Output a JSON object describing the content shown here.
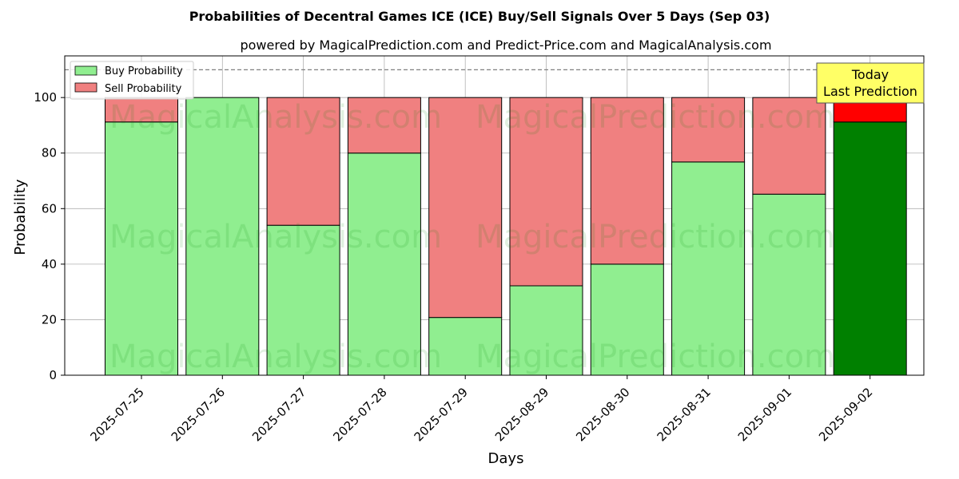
{
  "chart_data": {
    "type": "bar",
    "stacked": true,
    "title": "Probabilities of Decentral Games ICE (ICE) Buy/Sell Signals Over 5 Days (Sep 03)",
    "subtitle": "powered by MagicalPrediction.com and Predict-Price.com and MagicalAnalysis.com",
    "xlabel": "Days",
    "ylabel": "Probability",
    "ylim": [
      0,
      115
    ],
    "yticks": [
      0,
      20,
      40,
      60,
      80,
      100
    ],
    "grid": true,
    "legend_position": "top-left",
    "reference_line": 110,
    "categories": [
      "2025-07-25",
      "2025-07-26",
      "2025-07-27",
      "2025-07-28",
      "2025-07-29",
      "2025-08-29",
      "2025-08-30",
      "2025-08-31",
      "2025-09-01",
      "2025-09-02"
    ],
    "series": [
      {
        "name": "Buy Probability",
        "values": [
          91.2,
          100,
          54,
          80,
          20.8,
          32.2,
          40,
          76.8,
          65.2,
          91.2
        ]
      },
      {
        "name": "Sell Probability",
        "values": [
          8.8,
          0,
          46,
          20,
          79.2,
          67.8,
          60,
          23.2,
          34.8,
          8.8
        ]
      }
    ],
    "annotation": {
      "line1": "Today",
      "line2": "Last Prediction"
    },
    "watermarks": [
      "MagicalAnalysis.com",
      "MagicalPrediction.com",
      "MagicalAnalysis.com",
      "MagicalPrediction.com",
      "MagicalAnalysis.com",
      "MagicalPrediction.com"
    ]
  },
  "colors": {
    "buy": "#90EE90",
    "sell": "#F08080",
    "buy_highlight": "#008000",
    "sell_highlight": "#FF0000",
    "annotation_bg": "#FFFF66"
  }
}
